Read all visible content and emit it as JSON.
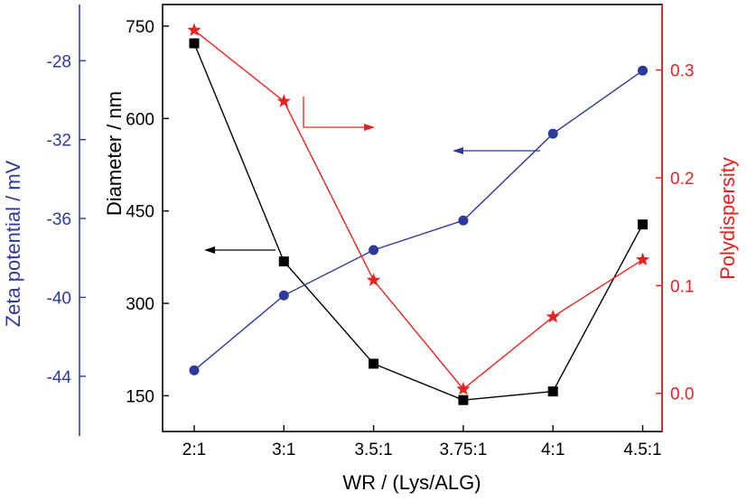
{
  "chart_data": {
    "type": "line",
    "categories": [
      "2:1",
      "3:1",
      "3.5:1",
      "3.75:1",
      "4:1",
      "4.5:1"
    ],
    "xlabel": "WR / (Lys/ALG)",
    "series": [
      {
        "name": "Diameter / nm",
        "axis": "left-inner",
        "color": "#000000",
        "marker": "square",
        "values": [
          722,
          368,
          202,
          143,
          157,
          428
        ]
      },
      {
        "name": "Zeta potential / mV",
        "axis": "left-outer",
        "color": "#2e3a9a",
        "marker": "circle",
        "values": [
          -43.7,
          -39.9,
          -37.6,
          -36.1,
          -31.7,
          -28.5
        ]
      },
      {
        "name": "Polydispersity",
        "axis": "right",
        "color": "#e8221e",
        "marker": "star",
        "values": [
          0.337,
          0.271,
          0.105,
          0.004,
          0.071,
          0.124
        ]
      }
    ],
    "axes": {
      "left_inner": {
        "label": "Diameter / nm",
        "ticks": [
          "150",
          "300",
          "450",
          "600",
          "750"
        ],
        "tick_values": [
          150,
          300,
          450,
          600,
          750
        ],
        "ylim": [
          92,
          785
        ],
        "color": "#000000"
      },
      "left_outer": {
        "label": "Zeta potential / mV",
        "ticks": [
          "-44",
          "-40",
          "-36",
          "-32",
          "-28"
        ],
        "tick_values": [
          -44,
          -40,
          -36,
          -32,
          -28
        ],
        "ylim": [
          -46.8,
          -25.15
        ],
        "color": "#2e3a9a"
      },
      "right": {
        "label": "Polydispersity",
        "ticks": [
          "0.0",
          "0.1",
          "0.2",
          "0.3"
        ],
        "tick_values": [
          0.0,
          0.1,
          0.2,
          0.3
        ],
        "ylim": [
          -0.0354,
          0.3608
        ],
        "color": "#e8221e"
      }
    },
    "grid": false,
    "legend": "none"
  }
}
